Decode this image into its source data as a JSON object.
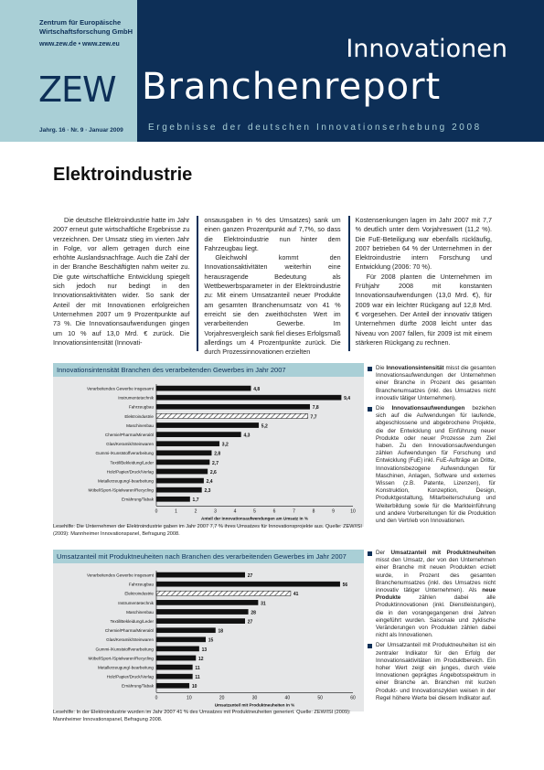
{
  "header": {
    "org_line1": "Zentrum für Europäische",
    "org_line2": "Wirtschaftsforschung GmbH",
    "org_url": "www.zew.de • www.zew.eu",
    "logo": "ZEW",
    "title_top": "Innovationen",
    "title_main": "Branchenreport",
    "issue": "Jahrg. 16 · Nr. 9 · Januar 2009",
    "subtitle": "Ergebnisse der deutschen Innovationserhebung 2008"
  },
  "article": {
    "heading": "Elektroindustrie",
    "col1": "Die deutsche Elektroindustrie hatte im Jahr 2007 erneut gute wirtschaftliche Ergebnisse zu verzeichnen. Der Umsatz stieg im vierten Jahr in Folge, vor allem getragen durch eine erhöhte Auslandsnachfrage. Auch die Zahl der in der Branche Beschäftigten nahm weiter zu. Die gute wirtschaftliche Entwicklung spiegelt sich jedoch nur bedingt in den Innovationsaktivitäten wider. So sank der Anteil der mit Innovationen erfolgreichen Unternehmen 2007 um 9 Prozentpunkte auf 73 %. Die Innovationsaufwendungen gingen um 10 % auf 13,0 Mrd. € zurück. Die Innovationsintensität (Innovati-",
    "col2a": "onsausgaben in % des Umsatzes) sank um einen ganzen Prozentpunkt auf 7,7%, so dass die Elektroindustrie nun hinter dem Fahrzeugbau liegt.",
    "col2b": "Gleichwohl kommt den Innovationsaktivitäten weiterhin eine herausragende Bedeutung als Wettbewerbsparameter in der Elektroindustrie zu: Mit einem Umsatzanteil neuer Produkte am gesamten Branchenumsatz von 41 % erreicht sie den zweithöchsten Wert im verarbeitenden Gewerbe. Im Vorjahresvergleich sank fiel dieses Erfolgsmaß allerdings um 4 Prozentpunkte zurück. Die durch Prozessinnovationen erzielten",
    "col3a": "Kostensenkungen lagen im Jahr 2007 mit 7,7 % deutlich unter dem Vorjahreswert (11,2 %). Die FuE-Beteiligung war ebenfalls rückläufig, 2007 betrieben 64 % der Unternehmen in der Elektroindustrie intern Forschung und Entwicklung (2006: 70 %).",
    "col3b": "Für 2008 planten die Unternehmen im Frühjahr 2008 mit konstanten Innovationsaufwendungen (13,0 Mrd. €), für 2009 war ein leichter Rückgang auf 12,8 Mrd. € vorgesehen. Der Anteil der innovativ tätigen Unternehmen dürfte 2008 leicht unter das Niveau von 2007 fallen, für 2009 ist mit einem stärkeren Rückgang zu rechnen."
  },
  "chart_data": [
    {
      "type": "bar",
      "orientation": "horizontal",
      "title": "Innovationsintensität Branchen des verarbeitenden Gewerbes im Jahr 2007",
      "xlabel": "Anteil der Innovationsaufwendungen am Umsatz in %",
      "xlim": [
        0,
        10
      ],
      "ticks": [
        "0",
        "1",
        "2",
        "3",
        "4",
        "5",
        "6",
        "7",
        "8",
        "9",
        "10"
      ],
      "categories": [
        "Verarbeitendes Gewerbe insgesamt",
        "Instrumentetechnik",
        "Fahrzeugbau",
        "Elektroindustrie",
        "Maschinenbau",
        "Chemie/Pharma/Mineralöl",
        "Glas/Keramik/Steinwaren",
        "Gummi-/Kunststoffverarbeitung",
        "Textil/Bekleidung/Leder",
        "Holz/Papier/Druck/Verlag",
        "Metallerzeugung/-bearbeitung",
        "Möbel/Sport-/Spielwaren/Recycling",
        "Ernährung/Tabak"
      ],
      "values": [
        4.8,
        9.4,
        7.8,
        7.7,
        5.2,
        4.3,
        3.2,
        2.8,
        2.7,
        2.6,
        2.4,
        2.3,
        1.7
      ],
      "labels": [
        "4,8",
        "9,4",
        "7,8",
        "7,7",
        "5,2",
        "4,3",
        "3,2",
        "2,8",
        "2,7",
        "2,6",
        "2,4",
        "2,3",
        "1,7"
      ],
      "highlight_index": 3,
      "source": "Lesehilfe: Die Unternehmen der Elektroindustrie gaben im Jahr 2007 7,7 % ihres Umsatzes für Innovationsprojekte aus. Quelle: ZEW/ISI (2009): Mannheimer Innovationspanel, Befragung 2008."
    },
    {
      "type": "bar",
      "orientation": "horizontal",
      "title": "Umsatzanteil mit Produktneuheiten nach Branchen des verarbeitenden Gewerbes im Jahr 2007",
      "xlabel": "Umsatzanteil mit Produktneuheiten in %",
      "xlim": [
        0,
        60
      ],
      "ticks": [
        "0",
        "10",
        "20",
        "30",
        "40",
        "50",
        "60"
      ],
      "categories": [
        "Verarbeitendes Gewerbe insgesamt",
        "Fahrzeugbau",
        "Elektroindustrie",
        "Instrumentetechnik",
        "Maschinenbau",
        "Textil/Bekleidung/Leder",
        "Chemie/Pharma/Mineralöl",
        "Glas/Keramik/Steinwaren",
        "Gummi-/Kunststoffverarbeitung",
        "Möbel/Sport-/Spielwaren/Recycling",
        "Metallerzeugung/-bearbeitung",
        "Holz/Papier/Druck/Verlag",
        "Ernährung/Tabak"
      ],
      "values": [
        27,
        56,
        41,
        31,
        28,
        27,
        18,
        15,
        13,
        12,
        11,
        11,
        10
      ],
      "labels": [
        "27",
        "56",
        "41",
        "31",
        "28",
        "27",
        "18",
        "15",
        "13",
        "12",
        "11",
        "11",
        "10"
      ],
      "highlight_index": 2,
      "source": "Lesehilfe: In der Elektroindustrie wurden im Jahr 2007 41 % des Umsatzes mit Produktneuheiten generiert. Quelle: ZEW/ISI (2009): Mannheimer Innovationspanel, Befragung 2008."
    }
  ],
  "sidebar1": [
    {
      "term": "Innovationsintensität",
      "text": " misst die gesamten Innovationsaufwendungen der Unternehmen einer Branche in Prozent des gesamten Branchenumsatzes (inkl. des Umsatzes nicht innovativ tätiger Unternehmen)."
    },
    {
      "term": "Innovationsaufwendungen",
      "text": " beziehen sich auf die Aufwendungen für laufende, abgeschlossene und abgebrochene Projekte, die der Entwicklung und Einführung neuer Produkte oder neuer Prozesse zum Ziel haben. Zu den Innovationsaufwendungen zählen Aufwendungen für Forschung und Entwicklung (FuE) inkl. FuE-Aufträge an Dritte, Innovationsbezogene Aufwendungen für Maschinen, Anlagen, Software und externes Wissen (z.B. Patente, Lizenzen), für Konstruktion, Konzeption, Design, Produktgestaltung, Mitarbeiterschulung und Weiterbildung sowie für die Markteinführung und andere Vorbereitungen für die Produktion und den Vertrieb von Innovationen."
    }
  ],
  "sidebar2": [
    {
      "pre": "Der ",
      "term": "Umsatzanteil mit Produktneuheiten",
      "text": " misst den Umsatz, der von den Unternehmen einer Branche mit neuen Produkten erzielt wurde, in Prozent des gesamten Branchenumsatzes (inkl. des Umsatzes nicht innovativ tätiger Unternehmen). Als ",
      "term2": "neue Produkte",
      "text2": " zählen dabei alle Produktinnovationen (inkl. Dienstleistungen), die in den vorangegangenen drei Jahren eingeführt wurden. Saisonale und zyklische Veränderungen von Produkten zählen dabei nicht als Innovationen."
    },
    {
      "pre": "",
      "term": "",
      "text": "Der Umsatzanteil mit Produktneuheiten ist ein zentraler Indikator für den Erfolg der Innovationsaktivitäten im Produktbereich. Ein hoher Wert zeigt ein junges, durch viele Innovationen geprägtes Angebotsspektrum in einer Branche an. Branchen mit kurzen Produkt- und Innovationszyklen weisen in der Regel höhere Werte bei diesem Indikator auf.",
      "term2": "",
      "text2": ""
    }
  ],
  "colors": {
    "navy": "#0d2f57",
    "light": "#a9cfd6",
    "panel": "#e6e7e8"
  }
}
